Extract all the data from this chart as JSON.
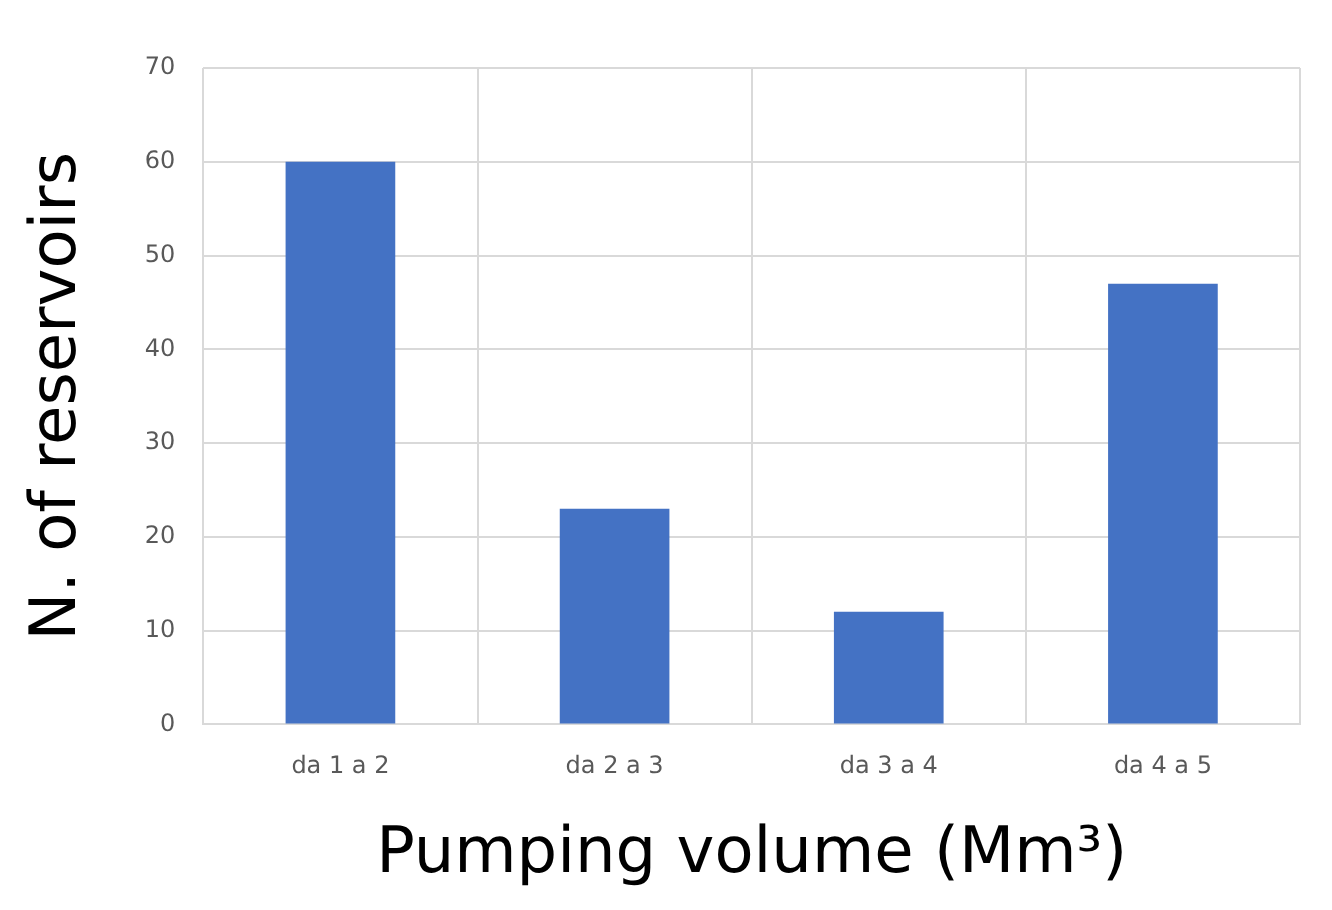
{
  "chart_data": {
    "type": "bar",
    "xlabel": "Pumping volume (Mm³)",
    "ylabel": "N. of reservoirs",
    "categories": [
      "da 1 a 2",
      "da 2 a 3",
      "da 3 a 4",
      "da 4 a 5"
    ],
    "values": [
      60,
      23,
      12,
      47
    ],
    "color": "#4472c4",
    "ylim": [
      0,
      70
    ],
    "yticks": [
      0,
      10,
      20,
      30,
      40,
      50,
      60,
      70
    ],
    "grid": true,
    "legend": false
  }
}
